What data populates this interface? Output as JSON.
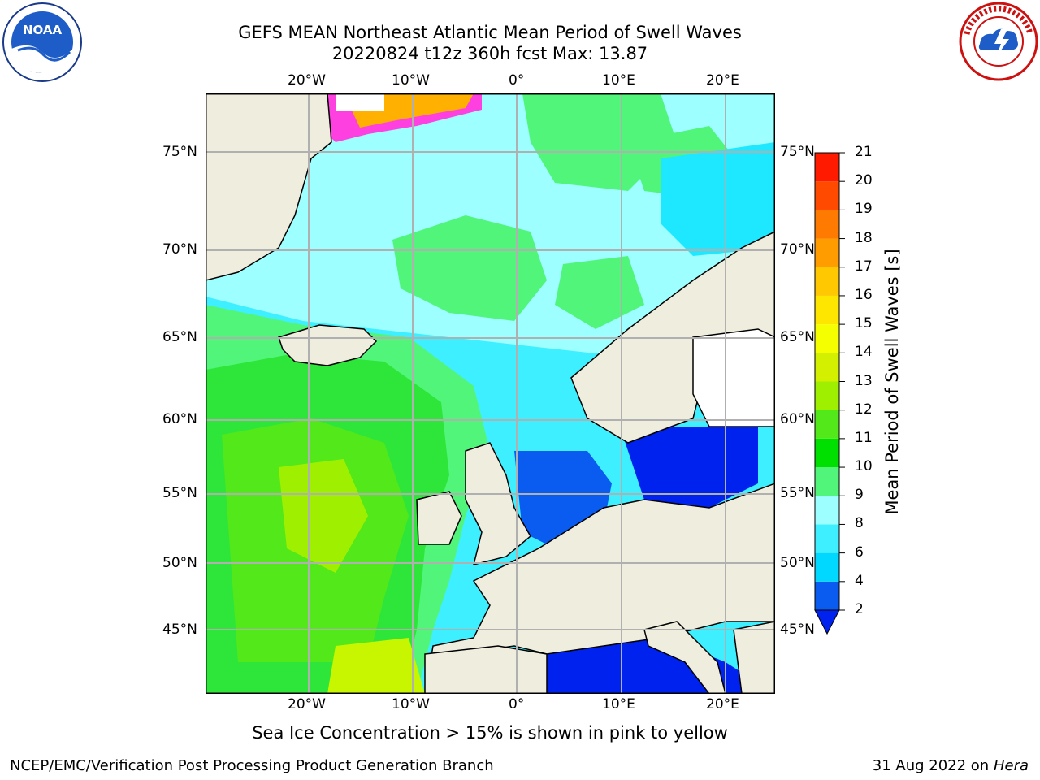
{
  "title_line1": "GEFS MEAN Northeast Atlantic Mean Period of Swell Waves",
  "title_line2": "20220824 t12z 360h fcst   Max: 13.87",
  "note": "Sea Ice Concentration > 15% is shown in pink to yellow",
  "footer_left": "NCEP/EMC/Verification Post Processing Product Generation Branch",
  "footer_date": "31 Aug 2022 on",
  "footer_machine": "Hera",
  "lon_labels": [
    "20°W",
    "10°W",
    "0°",
    "10°E",
    "20°E"
  ],
  "lat_labels": [
    "75°N",
    "70°N",
    "65°N",
    "60°N",
    "55°N",
    "50°N",
    "45°N"
  ],
  "colorbar": {
    "label": "Mean Period of Swell Waves [s]",
    "ticks": [
      "2",
      "4",
      "6",
      "8",
      "9",
      "10",
      "11",
      "12",
      "13",
      "14",
      "15",
      "16",
      "17",
      "18",
      "19",
      "20",
      "21"
    ],
    "colors": [
      "#0a5cf0",
      "#00d8ff",
      "#3ef0ff",
      "#9dffff",
      "#50f57a",
      "#00e000",
      "#52e81a",
      "#9ef000",
      "#d2f000",
      "#f5ff00",
      "#ffe600",
      "#ffc800",
      "#ff9d00",
      "#ff7a00",
      "#ff4a00",
      "#ff1a00"
    ],
    "extend_color": "#0022ee"
  },
  "logos": {
    "noaa_text": "NOAA"
  }
}
